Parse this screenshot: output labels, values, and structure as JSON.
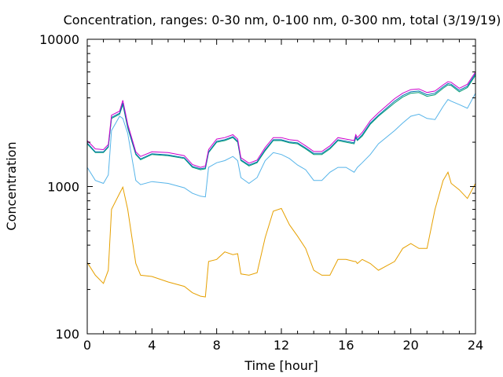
{
  "chart_data": {
    "type": "line",
    "title": "Concentration, ranges: 0-30 nm, 0-100 nm, 0-300 nm, total (3/19/19)",
    "xlabel": "Time [hour]",
    "ylabel": "Concentration",
    "xlim": [
      0,
      24
    ],
    "ylim": [
      100,
      10000
    ],
    "yscale": "log",
    "grid": false,
    "legend": "none",
    "x_ticks": [
      0,
      4,
      8,
      12,
      16,
      20,
      24
    ],
    "x_tick_labels": [
      "0",
      "4",
      "8",
      "12",
      "16",
      "20",
      "24"
    ],
    "y_ticks": [
      100,
      1000,
      10000
    ],
    "y_tick_labels": [
      "100",
      "1000",
      "10000"
    ],
    "x": [
      0,
      0.5,
      1,
      1.3,
      1.5,
      2,
      2.2,
      2.5,
      3,
      3.3,
      4,
      5,
      6,
      6.5,
      7,
      7.3,
      7.5,
      8,
      8.5,
      9,
      9.3,
      9.5,
      10,
      10.5,
      11,
      11.5,
      12,
      12.5,
      13,
      13.5,
      14,
      14.5,
      15,
      15.5,
      16,
      16.5,
      16.6,
      16.7,
      17,
      17.5,
      18,
      19,
      19.5,
      20,
      20.5,
      21,
      21.5,
      22,
      22.3,
      22.5,
      23,
      23.5,
      24
    ],
    "series": [
      {
        "color": "#e6a000",
        "values": [
          305,
          250,
          220,
          270,
          700,
          900,
          990,
          700,
          300,
          250,
          245,
          225,
          210,
          190,
          180,
          178,
          310,
          320,
          360,
          345,
          350,
          255,
          250,
          260,
          450,
          680,
          710,
          550,
          460,
          380,
          270,
          250,
          250,
          320,
          320,
          310,
          310,
          300,
          320,
          300,
          270,
          310,
          380,
          410,
          380,
          380,
          700,
          1100,
          1250,
          1050,
          950,
          830,
          1050
        ]
      },
      {
        "color": "#56b4e9",
        "values": [
          1350,
          1100,
          1050,
          1200,
          2400,
          3000,
          2900,
          2300,
          1100,
          1030,
          1080,
          1050,
          980,
          900,
          860,
          850,
          1350,
          1450,
          1500,
          1600,
          1500,
          1150,
          1050,
          1150,
          1500,
          1700,
          1650,
          1550,
          1400,
          1300,
          1100,
          1100,
          1250,
          1350,
          1350,
          1250,
          1300,
          1350,
          1450,
          1650,
          1950,
          2400,
          2700,
          3000,
          3100,
          2900,
          2850,
          3500,
          3900,
          3800,
          3600,
          3400,
          4300
        ]
      },
      {
        "color": "#009e73",
        "values": [
          1950,
          1700,
          1700,
          1850,
          2900,
          3100,
          3600,
          2500,
          1650,
          1520,
          1650,
          1620,
          1550,
          1350,
          1300,
          1320,
          1700,
          2000,
          2050,
          2150,
          2000,
          1500,
          1380,
          1450,
          1750,
          2050,
          2050,
          1980,
          1950,
          1800,
          1650,
          1650,
          1800,
          2050,
          2000,
          1950,
          2150,
          2050,
          2200,
          2650,
          3000,
          3700,
          4050,
          4300,
          4350,
          4100,
          4200,
          4650,
          4900,
          4850,
          4400,
          4700,
          5700
        ]
      },
      {
        "color": "#0072b2",
        "values": [
          1980,
          1720,
          1720,
          1870,
          2950,
          3150,
          3700,
          2550,
          1670,
          1540,
          1670,
          1640,
          1570,
          1370,
          1320,
          1340,
          1720,
          2030,
          2080,
          2180,
          2030,
          1520,
          1400,
          1470,
          1780,
          2080,
          2080,
          2010,
          1980,
          1830,
          1680,
          1680,
          1830,
          2080,
          2030,
          1980,
          2180,
          2080,
          2250,
          2700,
          3050,
          3800,
          4150,
          4400,
          4450,
          4200,
          4300,
          4750,
          5000,
          4950,
          4500,
          4800,
          5850
        ]
      },
      {
        "color": "#cc00cc",
        "values": [
          2050,
          1800,
          1780,
          1930,
          3050,
          3250,
          3850,
          2650,
          1720,
          1600,
          1720,
          1700,
          1620,
          1410,
          1350,
          1380,
          1780,
          2100,
          2150,
          2250,
          2100,
          1570,
          1440,
          1510,
          1840,
          2150,
          2150,
          2080,
          2050,
          1890,
          1730,
          1730,
          1890,
          2150,
          2100,
          2050,
          2250,
          2150,
          2330,
          2800,
          3170,
          3950,
          4300,
          4550,
          4600,
          4350,
          4450,
          4900,
          5150,
          5100,
          4650,
          4950,
          6000
        ]
      }
    ]
  }
}
